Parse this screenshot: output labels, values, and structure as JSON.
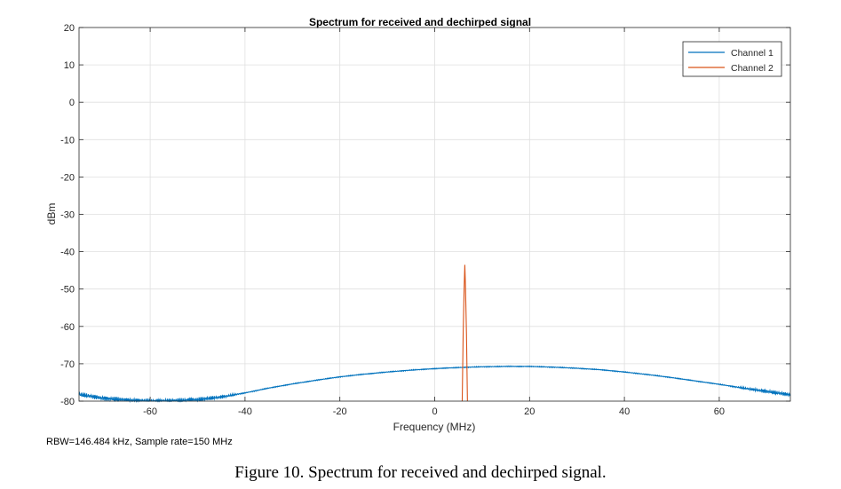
{
  "caption": "Figure 10. Spectrum for received and dechirped signal.",
  "footnote": "RBW=146.484 kHz, Sample rate=150 MHz",
  "chart_data": {
    "type": "line",
    "title": "Spectrum for received and dechirped signal",
    "xlabel": "Frequency (MHz)",
    "ylabel": "dBm",
    "xlim": [
      -75,
      75
    ],
    "ylim": [
      -80,
      20
    ],
    "xticks": [
      -60,
      -40,
      -20,
      0,
      20,
      40,
      60
    ],
    "yticks": [
      20,
      10,
      0,
      -10,
      -20,
      -30,
      -40,
      -50,
      -60,
      -70,
      -80
    ],
    "grid": true,
    "legend_position": "top-right",
    "series": [
      {
        "name": "Channel 1",
        "color": "#0072BD",
        "x": [
          -75,
          -70,
          -65,
          -60,
          -55,
          -50,
          -45,
          -40,
          -35,
          -30,
          -25,
          -20,
          -15,
          -10,
          -5,
          0,
          5,
          10,
          15,
          20,
          25,
          30,
          35,
          40,
          45,
          50,
          55,
          60,
          65,
          70,
          75
        ],
        "y": [
          -78.2,
          -79.2,
          -79.7,
          -80.0,
          -79.9,
          -79.6,
          -78.9,
          -77.8,
          -76.5,
          -75.4,
          -74.4,
          -73.5,
          -72.8,
          -72.2,
          -71.7,
          -71.3,
          -71.0,
          -70.8,
          -70.7,
          -70.7,
          -70.9,
          -71.2,
          -71.6,
          -72.2,
          -72.9,
          -73.7,
          -74.6,
          -75.5,
          -76.5,
          -77.4,
          -78.3
        ]
      },
      {
        "name": "Channel 2",
        "color": "#D95319",
        "x": [
          5.8,
          6.0,
          6.2,
          6.35,
          6.5,
          6.7,
          6.9
        ],
        "y": [
          -80,
          -62,
          -50,
          -43.5,
          -50,
          -62,
          -80
        ]
      }
    ]
  }
}
